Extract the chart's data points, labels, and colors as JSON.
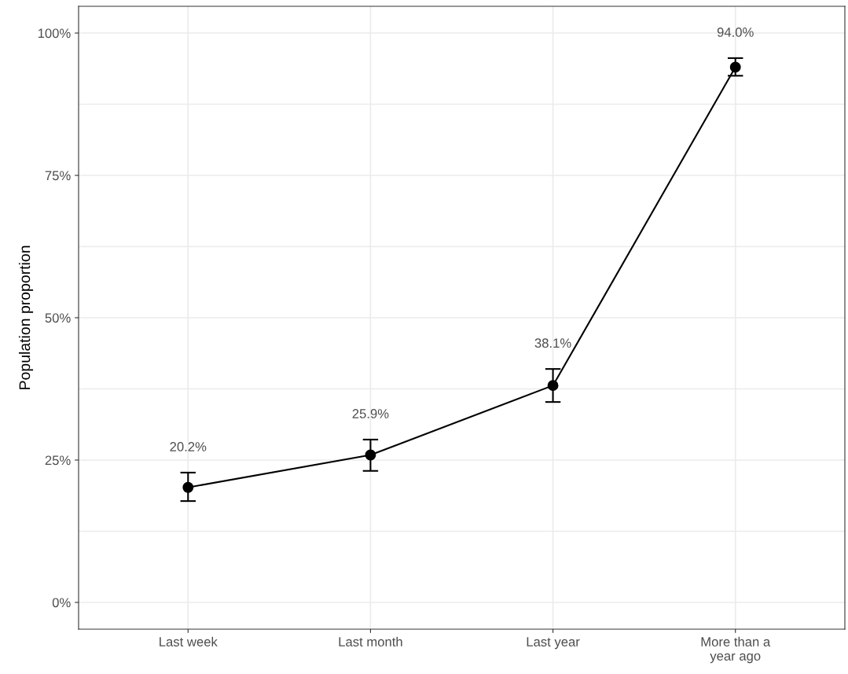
{
  "chart_data": {
    "type": "line",
    "ylabel": "Population proportion",
    "categories": [
      "Last week",
      "Last month",
      "Last year",
      "More than a\nyear ago"
    ],
    "series": [
      {
        "color": "#000000",
        "values": [
          20.2,
          25.9,
          38.1,
          94.0
        ],
        "errors": [
          [
            17.8,
            22.8
          ],
          [
            23.1,
            28.6
          ],
          [
            35.2,
            41.0
          ],
          [
            92.5,
            95.6
          ]
        ],
        "value_labels": [
          "20.2%",
          "25.9%",
          "38.1%",
          "94.0%"
        ]
      }
    ],
    "ylim": [
      -4.7,
      104.7
    ],
    "yticks": [
      {
        "value": 0,
        "label": "0%"
      },
      {
        "value": 12.5,
        "label": null
      },
      {
        "value": 25,
        "label": "25%"
      },
      {
        "value": 37.5,
        "label": null
      },
      {
        "value": 50,
        "label": "50%"
      },
      {
        "value": 62.5,
        "label": null
      },
      {
        "value": 75,
        "label": "75%"
      },
      {
        "value": 87.5,
        "label": null
      },
      {
        "value": 100,
        "label": "100%"
      }
    ],
    "grid": true,
    "marker": "circle",
    "line_style": "solid"
  }
}
